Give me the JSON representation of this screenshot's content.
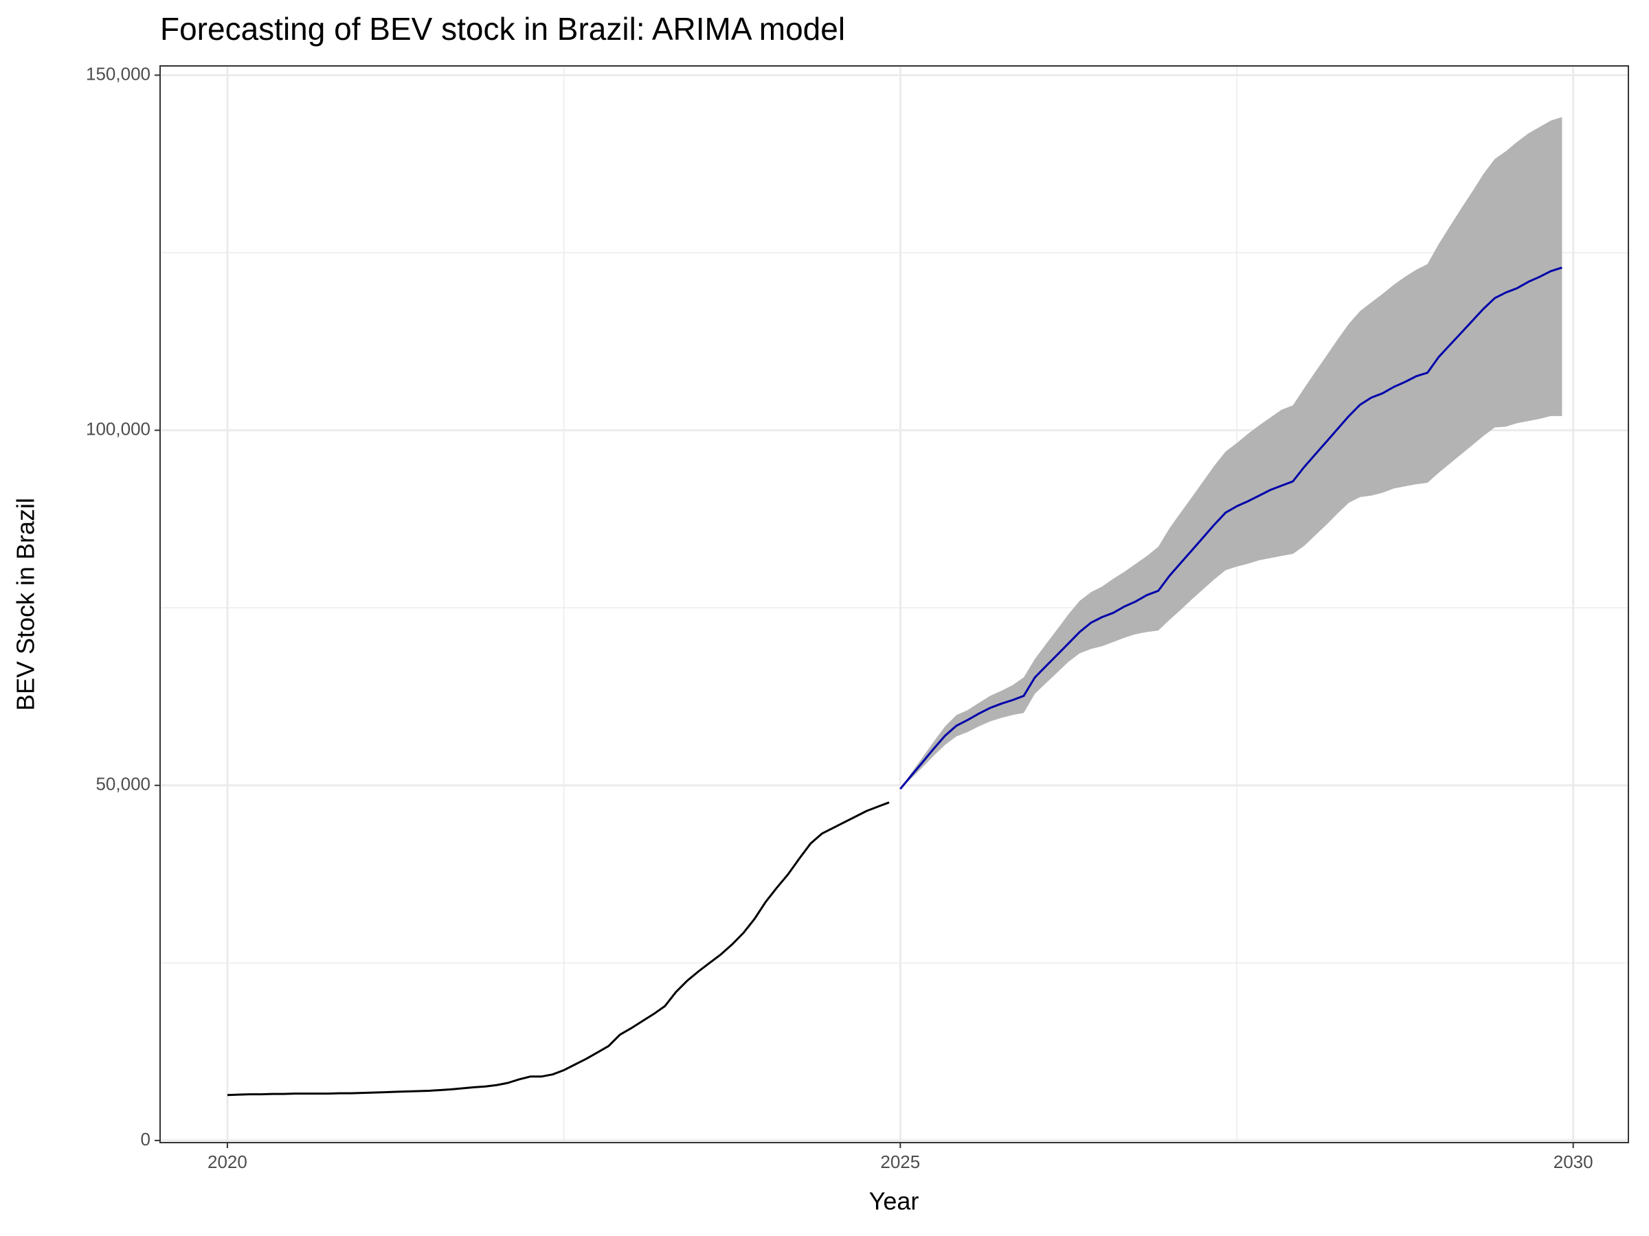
{
  "chart_data": {
    "type": "line",
    "title": "Forecasting of BEV stock in Brazil: ARIMA model",
    "x_label": "Year",
    "y_label": "BEV Stock in Brazil",
    "xlim": [
      2019.5,
      2030.41
    ],
    "ylim": [
      -300,
      151300
    ],
    "xticks": [
      2020,
      2025,
      2030
    ],
    "yticks": [
      0,
      {
        "value": 50000,
        "label": "50,000"
      },
      {
        "value": 100000,
        "label": "100,000"
      },
      {
        "value": 150000,
        "label": "150,000"
      }
    ],
    "x_minor_grid": [
      2022.5,
      2027.5
    ],
    "y_minor_grid": [
      25000,
      75000,
      125000
    ],
    "grid": true,
    "series": [
      {
        "color": "#000000",
        "x": [
          2020,
          2020.083,
          2020.167,
          2020.25,
          2020.333,
          2020.417,
          2020.5,
          2020.583,
          2020.667,
          2020.75,
          2020.833,
          2020.917,
          2021,
          2021.083,
          2021.167,
          2021.25,
          2021.333,
          2021.417,
          2021.5,
          2021.583,
          2021.667,
          2021.75,
          2021.833,
          2021.917,
          2022,
          2022.083,
          2022.167,
          2022.25,
          2022.333,
          2022.417,
          2022.5,
          2022.583,
          2022.667,
          2022.75,
          2022.833,
          2022.917,
          2023,
          2023.083,
          2023.167,
          2023.25,
          2023.333,
          2023.417,
          2023.5,
          2023.583,
          2023.667,
          2023.75,
          2023.833,
          2023.917,
          2024,
          2024.083,
          2024.167,
          2024.25,
          2024.333,
          2024.417,
          2024.5,
          2024.583,
          2024.667,
          2024.75,
          2024.833,
          2024.917
        ],
        "values": [
          6400,
          6450,
          6500,
          6500,
          6550,
          6550,
          6600,
          6600,
          6600,
          6600,
          6650,
          6650,
          6700,
          6750,
          6800,
          6850,
          6900,
          6950,
          7000,
          7100,
          7200,
          7350,
          7500,
          7600,
          7800,
          8100,
          8600,
          9000,
          9000,
          9300,
          9900,
          10700,
          11500,
          12400,
          13300,
          14900,
          15800,
          16800,
          17800,
          18900,
          20900,
          22500,
          23800,
          25000,
          26200,
          27600,
          29200,
          31200,
          33600,
          35600,
          37500,
          39700,
          41800,
          43200,
          44000,
          44800,
          45600,
          46400,
          47000,
          47600
        ]
      },
      {
        "color": "#0000aa",
        "band_color": "#b3b3b3",
        "x": [
          2025,
          2025.083,
          2025.167,
          2025.25,
          2025.333,
          2025.417,
          2025.5,
          2025.583,
          2025.667,
          2025.75,
          2025.833,
          2025.917,
          2026,
          2026.083,
          2026.167,
          2026.25,
          2026.333,
          2026.417,
          2026.5,
          2026.583,
          2026.667,
          2026.75,
          2026.833,
          2026.917,
          2027,
          2027.083,
          2027.167,
          2027.25,
          2027.333,
          2027.417,
          2027.5,
          2027.583,
          2027.667,
          2027.75,
          2027.833,
          2027.917,
          2028,
          2028.083,
          2028.167,
          2028.25,
          2028.333,
          2028.417,
          2028.5,
          2028.583,
          2028.667,
          2028.75,
          2028.833,
          2028.917,
          2029,
          2029.083,
          2029.167,
          2029.25,
          2029.333,
          2029.417,
          2029.5,
          2029.583,
          2029.667,
          2029.75,
          2029.833,
          2029.917
        ],
        "values": [
          49500,
          51400,
          53300,
          55200,
          57000,
          58400,
          59200,
          60100,
          60900,
          61500,
          62000,
          62600,
          65200,
          66800,
          68400,
          70000,
          71600,
          72900,
          73700,
          74300,
          75200,
          75900,
          76800,
          77400,
          79500,
          81300,
          83100,
          84900,
          86700,
          88400,
          89300,
          90000,
          90800,
          91600,
          92200,
          92800,
          94800,
          96600,
          98400,
          100200,
          102000,
          103600,
          104600,
          105200,
          106100,
          106800,
          107600,
          108100,
          110300,
          112000,
          113700,
          115400,
          117100,
          118600,
          119400,
          120000,
          120900,
          121600,
          122400,
          122900
        ],
        "lower": [
          49500,
          51000,
          52600,
          54200,
          55700,
          56900,
          57500,
          58300,
          59000,
          59500,
          59900,
          60200,
          62900,
          64400,
          65900,
          67400,
          68600,
          69200,
          69600,
          70200,
          70800,
          71300,
          71600,
          71800,
          73300,
          74700,
          76200,
          77600,
          79000,
          80300,
          80800,
          81200,
          81700,
          82000,
          82300,
          82600,
          83700,
          85200,
          86700,
          88300,
          89800,
          90600,
          90800,
          91200,
          91800,
          92100,
          92400,
          92600,
          94000,
          95300,
          96600,
          97900,
          99200,
          100400,
          100500,
          101000,
          101300,
          101600,
          102000,
          102000
        ],
        "upper": [
          49500,
          51800,
          54000,
          56200,
          58300,
          59900,
          60600,
          61600,
          62600,
          63300,
          64100,
          65200,
          67800,
          69900,
          72000,
          74100,
          76000,
          77200,
          78000,
          79100,
          80100,
          81200,
          82300,
          83600,
          86200,
          88400,
          90600,
          92800,
          95000,
          97000,
          98200,
          99500,
          100700,
          101800,
          102900,
          103500,
          105900,
          108200,
          110500,
          112800,
          115000,
          116800,
          118000,
          119200,
          120500,
          121600,
          122600,
          123400,
          126200,
          128700,
          131200,
          133600,
          136100,
          138200,
          139300,
          140600,
          141800,
          142700,
          143600,
          144100
        ]
      }
    ]
  }
}
